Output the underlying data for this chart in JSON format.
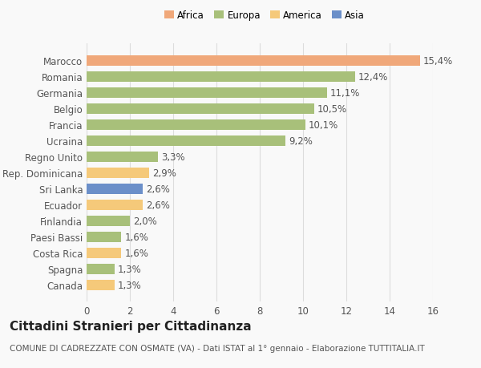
{
  "categories": [
    "Canada",
    "Spagna",
    "Costa Rica",
    "Paesi Bassi",
    "Finlandia",
    "Ecuador",
    "Sri Lanka",
    "Rep. Dominicana",
    "Regno Unito",
    "Ucraina",
    "Francia",
    "Belgio",
    "Germania",
    "Romania",
    "Marocco"
  ],
  "values": [
    1.3,
    1.3,
    1.6,
    1.6,
    2.0,
    2.6,
    2.6,
    2.9,
    3.3,
    9.2,
    10.1,
    10.5,
    11.1,
    12.4,
    15.4
  ],
  "labels": [
    "1,3%",
    "1,3%",
    "1,6%",
    "1,6%",
    "2,0%",
    "2,6%",
    "2,6%",
    "2,9%",
    "3,3%",
    "9,2%",
    "10,1%",
    "10,5%",
    "11,1%",
    "12,4%",
    "15,4%"
  ],
  "colors": [
    "#f5c97a",
    "#a8c07a",
    "#f5c97a",
    "#a8c07a",
    "#a8c07a",
    "#f5c97a",
    "#6b8fc9",
    "#f5c97a",
    "#a8c07a",
    "#a8c07a",
    "#a8c07a",
    "#a8c07a",
    "#a8c07a",
    "#a8c07a",
    "#f0a87a"
  ],
  "legend": {
    "Africa": "#f0a87a",
    "Europa": "#a8c07a",
    "America": "#f5c97a",
    "Asia": "#6b8fc9"
  },
  "title": "Cittadini Stranieri per Cittadinanza",
  "subtitle": "COMUNE DI CADREZZATE CON OSMATE (VA) - Dati ISTAT al 1° gennaio - Elaborazione TUTTITALIA.IT",
  "xlim": [
    0,
    16
  ],
  "xticks": [
    0,
    2,
    4,
    6,
    8,
    10,
    12,
    14,
    16
  ],
  "background_color": "#f9f9f9",
  "grid_color": "#dddddd",
  "text_color": "#555555",
  "title_fontsize": 11,
  "subtitle_fontsize": 7.5,
  "label_fontsize": 8.5,
  "tick_fontsize": 8.5
}
